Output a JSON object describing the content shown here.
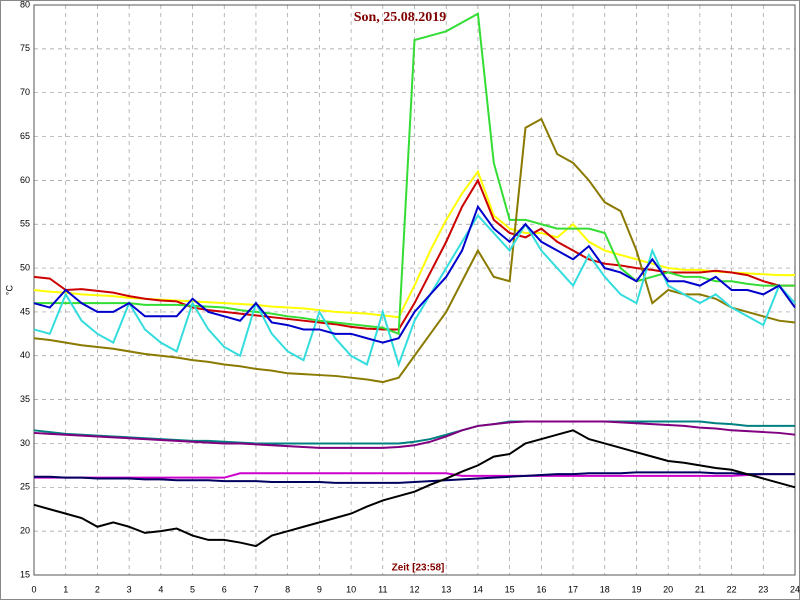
{
  "chart_data": {
    "type": "line",
    "title": "Son, 25.08.2019",
    "xlabel": "Zeit [23:58]",
    "ylabel": "°C",
    "x": [
      0,
      0.5,
      1,
      1.5,
      2,
      2.5,
      3,
      3.5,
      4,
      4.5,
      5,
      5.5,
      6,
      6.5,
      7,
      7.5,
      8,
      8.5,
      9,
      9.5,
      10,
      10.5,
      11,
      11.5,
      12,
      12.5,
      13,
      13.5,
      14,
      14.5,
      15,
      15.5,
      16,
      16.5,
      17,
      17.5,
      18,
      18.5,
      19,
      19.5,
      20,
      20.5,
      21,
      21.5,
      22,
      22.5,
      23,
      23.5,
      24
    ],
    "xlim": [
      0,
      24
    ],
    "xticks": [
      0,
      1,
      2,
      3,
      4,
      5,
      6,
      7,
      8,
      9,
      10,
      11,
      12,
      13,
      14,
      15,
      16,
      17,
      18,
      19,
      20,
      21,
      22,
      23,
      24
    ],
    "ylim": [
      15,
      80
    ],
    "yticks": [
      15,
      20,
      25,
      30,
      35,
      40,
      45,
      50,
      55,
      60,
      65,
      70,
      75,
      80
    ],
    "grid": true,
    "series": [
      {
        "color": "#ffff00",
        "values": [
          47.5,
          47.3,
          47.2,
          47,
          46.9,
          46.8,
          46.6,
          46.5,
          46.4,
          46.3,
          46.2,
          46.1,
          46,
          45.9,
          45.8,
          45.6,
          45.5,
          45.4,
          45.2,
          45,
          44.9,
          44.8,
          44.6,
          44.4,
          48,
          52,
          55.5,
          58.5,
          61,
          56,
          54.5,
          54,
          54,
          53.5,
          55,
          53,
          52,
          51.5,
          51,
          50.5,
          50,
          49.8,
          49.8,
          49.6,
          49.5,
          49.4,
          49.3,
          49.2,
          49.2
        ]
      },
      {
        "color": "#cc0000",
        "values": [
          49,
          48.8,
          47.5,
          47.6,
          47.4,
          47.2,
          46.8,
          46.5,
          46.3,
          46.2,
          45.5,
          45.2,
          45,
          44.8,
          44.6,
          44.4,
          44.2,
          44,
          43.8,
          43.6,
          43.3,
          43.1,
          43,
          43,
          46,
          49.5,
          53,
          57,
          60,
          55.5,
          54,
          53.5,
          54.5,
          53,
          52,
          51,
          50.5,
          50.3,
          50,
          49.8,
          49.5,
          49.5,
          49.5,
          49.7,
          49.5,
          49.2,
          48.5,
          48,
          48
        ]
      },
      {
        "color": "#33dd33",
        "values": [
          46,
          46,
          46,
          46,
          46,
          46,
          46,
          45.8,
          45.8,
          45.8,
          45.7,
          45.6,
          45.5,
          45.2,
          45,
          44.8,
          44.5,
          44.3,
          44,
          43.8,
          43.6,
          43.4,
          43.2,
          42.5,
          76,
          76.5,
          77,
          78,
          79,
          62,
          55.5,
          55.5,
          55,
          54.5,
          54.5,
          54.5,
          54,
          50,
          48.5,
          49,
          49.5,
          49,
          49,
          48.5,
          48.5,
          48.2,
          48,
          48,
          48
        ]
      },
      {
        "color": "#8a7a00",
        "values": [
          42,
          41.8,
          41.5,
          41.2,
          41,
          40.8,
          40.5,
          40.2,
          40,
          39.8,
          39.5,
          39.3,
          39,
          38.8,
          38.5,
          38.3,
          38,
          37.9,
          37.8,
          37.7,
          37.5,
          37.3,
          37,
          37.5,
          40,
          42.5,
          45,
          48.5,
          52,
          49,
          48.5,
          66,
          67,
          63,
          62,
          60,
          57.5,
          56.5,
          52,
          46,
          47.5,
          47,
          47,
          46.5,
          45.5,
          45,
          44.5,
          44,
          43.8
        ]
      },
      {
        "color": "#33dddd",
        "values": [
          43,
          42.5,
          47,
          44,
          42.5,
          41.5,
          46,
          43,
          41.5,
          40.5,
          46,
          43,
          41,
          40,
          46,
          42.5,
          40.5,
          39.5,
          45,
          42,
          40,
          39,
          45,
          39,
          44,
          47,
          50,
          53,
          56,
          54,
          52,
          55,
          52,
          50,
          48,
          51.5,
          49,
          47,
          46,
          52,
          48,
          47,
          46,
          47,
          45.5,
          44.5,
          43.5,
          48,
          46
        ]
      },
      {
        "color": "#0000cc",
        "values": [
          46,
          45.5,
          47.5,
          46,
          45,
          45,
          46,
          44.5,
          44.5,
          44.5,
          46.5,
          45,
          44.5,
          44,
          46,
          43.8,
          43.5,
          43,
          43,
          42.5,
          42.5,
          42,
          41.5,
          42,
          45,
          47,
          49,
          52,
          57,
          54.5,
          53,
          55,
          53,
          52,
          51,
          52.5,
          50,
          49.5,
          48.5,
          51,
          48.5,
          48.5,
          48,
          49,
          47.5,
          47.5,
          47,
          48,
          45.5
        ]
      },
      {
        "color": "#008080",
        "values": [
          31.5,
          31.3,
          31.1,
          31,
          30.9,
          30.8,
          30.7,
          30.6,
          30.5,
          30.4,
          30.3,
          30.3,
          30.2,
          30.1,
          30,
          30,
          30,
          30,
          30,
          30,
          30,
          30,
          30,
          30,
          30.2,
          30.5,
          31,
          31.5,
          32,
          32.2,
          32.5,
          32.5,
          32.5,
          32.5,
          32.5,
          32.5,
          32.5,
          32.5,
          32.5,
          32.5,
          32.5,
          32.5,
          32.5,
          32.3,
          32.2,
          32,
          32,
          32,
          32
        ]
      },
      {
        "color": "#800080",
        "values": [
          31.2,
          31.1,
          31,
          30.9,
          30.8,
          30.7,
          30.6,
          30.5,
          30.4,
          30.3,
          30.2,
          30.1,
          30,
          30,
          29.9,
          29.8,
          29.7,
          29.6,
          29.5,
          29.5,
          29.5,
          29.5,
          29.5,
          29.6,
          29.8,
          30.2,
          30.8,
          31.5,
          32,
          32.2,
          32.4,
          32.5,
          32.5,
          32.5,
          32.5,
          32.5,
          32.5,
          32.4,
          32.3,
          32.2,
          32.1,
          32,
          31.8,
          31.7,
          31.5,
          31.4,
          31.3,
          31.2,
          31
        ]
      },
      {
        "color": "#cc00cc",
        "values": [
          26.1,
          26.1,
          26.1,
          26.1,
          26.1,
          26.1,
          26.1,
          26.1,
          26.1,
          26.1,
          26.1,
          26.1,
          26.1,
          26.6,
          26.6,
          26.6,
          26.6,
          26.6,
          26.6,
          26.6,
          26.6,
          26.6,
          26.6,
          26.6,
          26.6,
          26.6,
          26.6,
          26.3,
          26.3,
          26.3,
          26.3,
          26.3,
          26.3,
          26.3,
          26.3,
          26.3,
          26.3,
          26.3,
          26.3,
          26.3,
          26.3,
          26.3,
          26.3,
          26.3,
          26.3,
          26.4,
          26.5,
          26.5,
          26.5
        ]
      },
      {
        "color": "#000060",
        "values": [
          26.2,
          26.2,
          26.1,
          26.1,
          26,
          26,
          26,
          25.9,
          25.9,
          25.8,
          25.8,
          25.8,
          25.7,
          25.7,
          25.7,
          25.6,
          25.6,
          25.6,
          25.6,
          25.5,
          25.5,
          25.5,
          25.5,
          25.5,
          25.6,
          25.7,
          25.8,
          25.9,
          26,
          26.1,
          26.2,
          26.3,
          26.4,
          26.5,
          26.5,
          26.6,
          26.6,
          26.6,
          26.7,
          26.7,
          26.7,
          26.7,
          26.7,
          26.6,
          26.6,
          26.5,
          26.5,
          26.5,
          26.5
        ]
      },
      {
        "color": "#000000",
        "values": [
          23,
          22.5,
          22,
          21.5,
          20.5,
          21,
          20.5,
          19.8,
          20,
          20.3,
          19.5,
          19,
          19,
          18.7,
          18.3,
          19.5,
          20,
          20.5,
          21,
          21.5,
          22,
          22.8,
          23.5,
          24,
          24.5,
          25.3,
          26,
          26.8,
          27.5,
          28.5,
          28.8,
          30,
          30.5,
          31,
          31.5,
          30.5,
          30,
          29.5,
          29,
          28.5,
          28,
          27.8,
          27.5,
          27.2,
          27,
          26.5,
          26,
          25.5,
          25
        ]
      }
    ]
  }
}
